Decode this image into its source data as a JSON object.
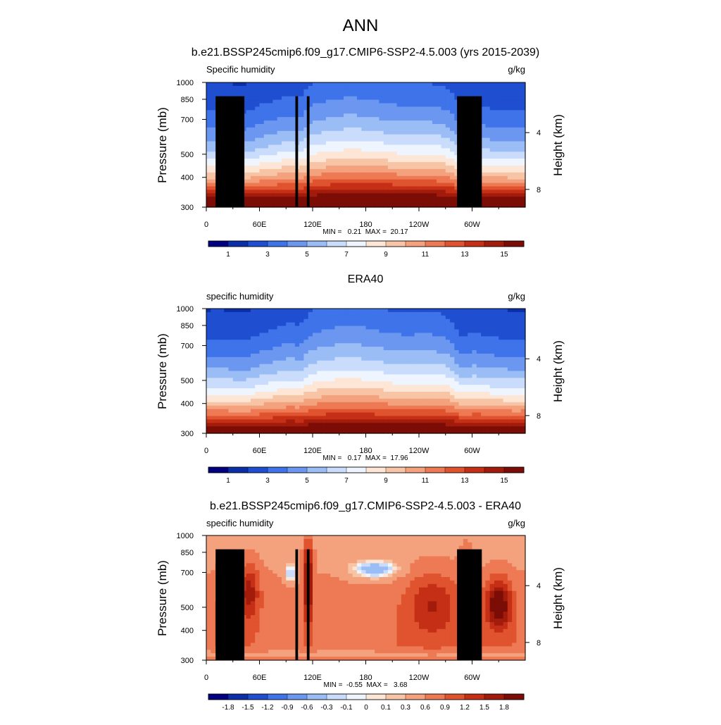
{
  "main_title": "ANN",
  "colors": {
    "ramp": [
      "#000080",
      "#0a2fa8",
      "#1f4fd0",
      "#3f73ea",
      "#6c97f0",
      "#9bbdf6",
      "#c9dcfb",
      "#eef5ff",
      "#fde6d6",
      "#f8c4a6",
      "#f4a27e",
      "#ee7a55",
      "#e0532f",
      "#c52f16",
      "#a21b0b",
      "#7b0d06"
    ],
    "diff_ramp": [
      "#000080",
      "#0a2fa8",
      "#1f4fd0",
      "#3f73ea",
      "#6c97f0",
      "#9bbdf6",
      "#c9dcfb",
      "#eef5ff",
      "#fde6d6",
      "#f8c4a6",
      "#f4a27e",
      "#ee7a55",
      "#e0532f",
      "#c52f16",
      "#a21b0b",
      "#7b0d06"
    ],
    "mask": "#000000"
  },
  "chart_data": [
    {
      "type": "heatmap",
      "title": "b.e21.BSSP245cmip6.f09_g17.CMIP6-SSP2-4.5.003 (yrs 2015-2039)",
      "left_label": "Specific humidity",
      "units": "g/kg",
      "ylabel": "Pressure (mb)",
      "ylabel_right": "Height (km)",
      "stats": "MIN =   0.21  MAX =  20.17",
      "kind": "abs",
      "mask": true,
      "xlim": [
        0,
        360
      ],
      "ylim": [
        1000,
        300
      ],
      "x_ticks": [
        {
          "v": 0,
          "l": "0"
        },
        {
          "v": 60,
          "l": "60E"
        },
        {
          "v": 120,
          "l": "120E"
        },
        {
          "v": 180,
          "l": "180"
        },
        {
          "v": 240,
          "l": "120W"
        },
        {
          "v": 300,
          "l": "60W"
        }
      ],
      "y_ticks": [
        {
          "v": 300,
          "l": "300"
        },
        {
          "v": 400,
          "l": "400"
        },
        {
          "v": 500,
          "l": "500"
        },
        {
          "v": 700,
          "l": "700"
        },
        {
          "v": 850,
          "l": "850"
        },
        {
          "v": 1000,
          "l": "1000"
        }
      ],
      "height_ticks": [
        {
          "v": 8,
          "l": "8",
          "p": 356
        },
        {
          "v": 4,
          "l": "4",
          "p": 616
        }
      ],
      "colorbar_labels": [
        "1",
        "3",
        "5",
        "7",
        "9",
        "11",
        "13",
        "15"
      ]
    },
    {
      "type": "heatmap",
      "title": "ERA40",
      "left_label": "specific humidity",
      "units": "g/kg",
      "ylabel": "Pressure (mb)",
      "ylabel_right": "Height (km)",
      "stats": "MIN =   0.17  MAX =  17.96",
      "kind": "abs",
      "mask": false,
      "xlim": [
        0,
        360
      ],
      "ylim": [
        1000,
        300
      ],
      "x_ticks": [
        {
          "v": 0,
          "l": "0"
        },
        {
          "v": 60,
          "l": "60E"
        },
        {
          "v": 120,
          "l": "120E"
        },
        {
          "v": 180,
          "l": "180"
        },
        {
          "v": 240,
          "l": "120W"
        },
        {
          "v": 300,
          "l": "60W"
        }
      ],
      "y_ticks": [
        {
          "v": 300,
          "l": "300"
        },
        {
          "v": 400,
          "l": "400"
        },
        {
          "v": 500,
          "l": "500"
        },
        {
          "v": 700,
          "l": "700"
        },
        {
          "v": 850,
          "l": "850"
        },
        {
          "v": 1000,
          "l": "1000"
        }
      ],
      "height_ticks": [
        {
          "v": 8,
          "l": "8",
          "p": 356
        },
        {
          "v": 4,
          "l": "4",
          "p": 616
        }
      ],
      "colorbar_labels": [
        "1",
        "3",
        "5",
        "7",
        "9",
        "11",
        "13",
        "15"
      ]
    },
    {
      "type": "heatmap",
      "title": "b.e21.BSSP245cmip6.f09_g17.CMIP6-SSP2-4.5.003 - ERA40",
      "left_label": "specific humidity",
      "units": "g/kg",
      "ylabel": "Pressure (mb)",
      "ylabel_right": "Height (km)",
      "stats": "MIN =  -0.55  MAX =   3.68",
      "kind": "diff",
      "mask": true,
      "xlim": [
        0,
        360
      ],
      "ylim": [
        1000,
        300
      ],
      "x_ticks": [
        {
          "v": 0,
          "l": "0"
        },
        {
          "v": 60,
          "l": "60E"
        },
        {
          "v": 120,
          "l": "120E"
        },
        {
          "v": 180,
          "l": "180"
        },
        {
          "v": 240,
          "l": "120W"
        },
        {
          "v": 300,
          "l": "60W"
        }
      ],
      "y_ticks": [
        {
          "v": 300,
          "l": "300"
        },
        {
          "v": 400,
          "l": "400"
        },
        {
          "v": 500,
          "l": "500"
        },
        {
          "v": 700,
          "l": "700"
        },
        {
          "v": 850,
          "l": "850"
        },
        {
          "v": 1000,
          "l": "1000"
        }
      ],
      "height_ticks": [
        {
          "v": 8,
          "l": "8",
          "p": 356
        },
        {
          "v": 4,
          "l": "4",
          "p": 616
        }
      ],
      "colorbar_labels": [
        "-1.8",
        "-1.5",
        "-1.2",
        "-0.9",
        "-0.6",
        "-0.3",
        "-0.1",
        "0",
        "0.1",
        "0.3",
        "0.6",
        "0.9",
        "1.2",
        "1.5",
        "1.8"
      ]
    }
  ]
}
